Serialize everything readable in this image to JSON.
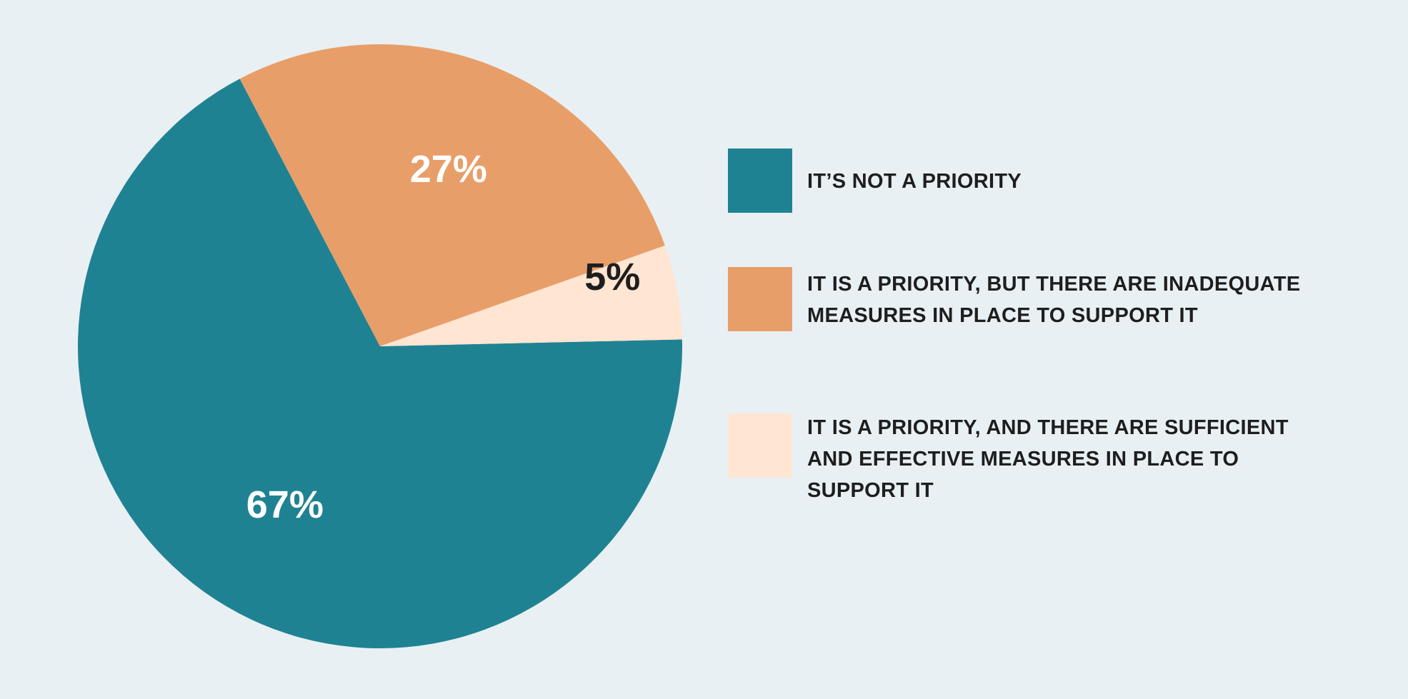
{
  "colors": {
    "background": "#e8f0f3",
    "teal": "#1f8293",
    "orange": "#e89e69",
    "peach": "#ffe5d2",
    "label_light": "#ffffff",
    "label_dark": "#1e1e1e"
  },
  "chart_data": {
    "type": "pie",
    "title": "",
    "slices": [
      {
        "label": "IT'S NOT A PRIORITY",
        "value": 67,
        "display": "67%",
        "color": "#1f8293"
      },
      {
        "label": "IT IS A PRIORITY, BUT THERE ARE INADEQUATE MEASURES IN PLACE TO SUPPORT IT",
        "value": 27,
        "display": "27%",
        "color": "#e89e69"
      },
      {
        "label": "IT IS A PRIORITY, AND THERE ARE SUFFICIENT AND EFFECTIVE MEASURES IN PLACE TO SUPPORT IT",
        "value": 5,
        "display": "5%",
        "color": "#ffe5d2"
      }
    ],
    "legend_position": "right"
  },
  "legend": {
    "items": [
      {
        "lines": [
          "IT’S NOT A PRIORITY"
        ]
      },
      {
        "lines": [
          "IT IS A PRIORITY, BUT THERE ARE INADEQUATE",
          "MEASURES IN PLACE TO SUPPORT IT"
        ]
      },
      {
        "lines": [
          "IT IS A PRIORITY, AND THERE ARE SUFFICIENT",
          "AND EFFECTIVE MEASURES IN PLACE TO",
          "SUPPORT IT"
        ]
      }
    ]
  }
}
